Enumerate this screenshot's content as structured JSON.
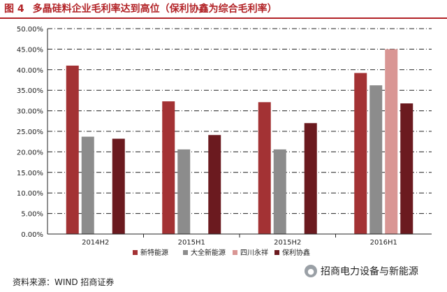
{
  "figure": {
    "number": "图 4",
    "title": "多晶硅料企业毛利率达到高位（保利协鑫为综合毛利率）"
  },
  "source": "资料来源：WIND  招商证券",
  "watermark": "招商电力设备与新能源",
  "chart_data": {
    "type": "bar",
    "categories": [
      "2014H2",
      "2015H1",
      "2015H2",
      "2016H1"
    ],
    "series": [
      {
        "name": "新特能源",
        "color": "#a33234",
        "values": [
          41.0,
          32.3,
          32.1,
          39.2
        ]
      },
      {
        "name": "大全新能源",
        "color": "#8c8c8c",
        "values": [
          23.7,
          20.6,
          20.6,
          36.2
        ]
      },
      {
        "name": "四川永祥",
        "color": "#d99694",
        "values": [
          null,
          null,
          null,
          45.0
        ]
      },
      {
        "name": "保利协鑫",
        "color": "#6b1a1f",
        "values": [
          23.2,
          24.1,
          27.0,
          31.8
        ]
      }
    ],
    "ylim": [
      0,
      50
    ],
    "yticks": [
      "0.00%",
      "5.00%",
      "10.00%",
      "15.00%",
      "20.00%",
      "25.00%",
      "30.00%",
      "35.00%",
      "40.00%",
      "45.00%",
      "50.00%"
    ],
    "grid": true,
    "legend_position": "bottom",
    "title": "多晶硅料企业毛利率达到高位（保利协鑫为综合毛利率）",
    "xlabel": "",
    "ylabel": ""
  }
}
